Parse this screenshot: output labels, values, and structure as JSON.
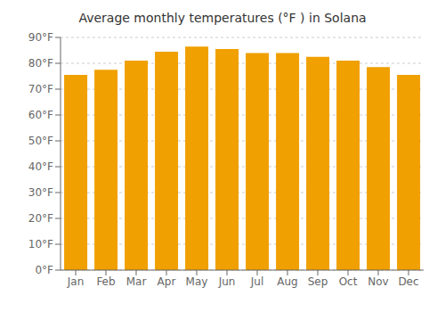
{
  "chart_data": {
    "type": "bar",
    "title": "Average monthly temperatures (°F ) in Solana",
    "categories": [
      "Jan",
      "Feb",
      "Mar",
      "Apr",
      "May",
      "Jun",
      "Jul",
      "Aug",
      "Sep",
      "Oct",
      "Nov",
      "Dec"
    ],
    "values": [
      75.5,
      77.5,
      81.0,
      84.5,
      86.5,
      85.5,
      84.0,
      84.0,
      82.5,
      81.0,
      78.5,
      75.5
    ],
    "color": "#F0A000",
    "ylim": [
      0,
      90
    ],
    "yticks": [
      {
        "value": 0,
        "label": "0°F"
      },
      {
        "value": 10,
        "label": "10°F"
      },
      {
        "value": 20,
        "label": "20°F"
      },
      {
        "value": 30,
        "label": "30°F"
      },
      {
        "value": 40,
        "label": "40°F"
      },
      {
        "value": 50,
        "label": "50°F"
      },
      {
        "value": 60,
        "label": "60°F"
      },
      {
        "value": 70,
        "label": "70°F"
      },
      {
        "value": 80,
        "label": "80°F"
      },
      {
        "value": 90,
        "label": "90°F"
      }
    ],
    "grid": true
  }
}
